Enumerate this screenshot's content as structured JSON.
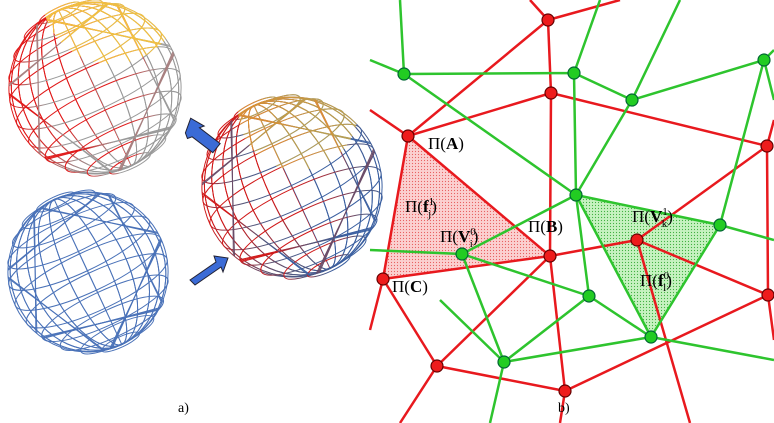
{
  "captions": [
    "a)",
    "b)"
  ],
  "labels": [
    {
      "open": "Π(",
      "base": "A",
      "close": ")"
    },
    {
      "open": "Π(",
      "base": "B",
      "close": ")"
    },
    {
      "open": "Π(",
      "base": "C",
      "close": ")"
    },
    {
      "open": "Π(",
      "base": "f",
      "sub": "j",
      "sup": "1",
      "close": ")"
    },
    {
      "open": "Π(",
      "base": "V",
      "sub": "i",
      "sup": "0",
      "close": ")"
    },
    {
      "open": "Π(",
      "base": "V",
      "sub": "k",
      "sup": "1",
      "close": ")"
    },
    {
      "open": "Π(",
      "base": "f",
      "sub": "l",
      "sup": "0",
      "close": ")"
    }
  ]
}
